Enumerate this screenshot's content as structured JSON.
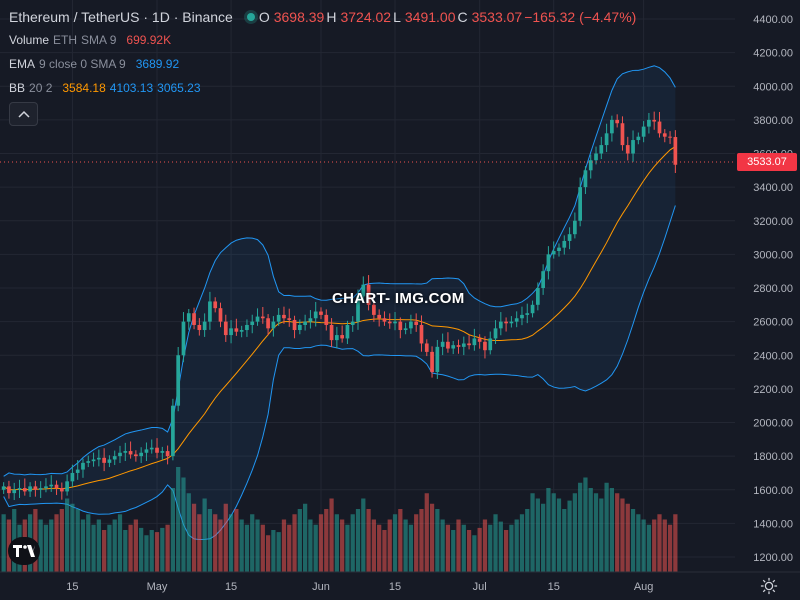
{
  "legend": {
    "symbol": "Ethereum / TetherUS · 1D · Binance",
    "ohlc": [
      {
        "label": "O",
        "value": "3698.39"
      },
      {
        "label": "H",
        "value": "3724.02"
      },
      {
        "label": "L",
        "value": "3491.00"
      },
      {
        "label": "C",
        "value": "3533.07"
      }
    ],
    "change": "−165.32 (−4.47%)",
    "volume": {
      "name": "Volume",
      "unit": "ETH",
      "ma": "SMA 9",
      "value": "699.92K"
    },
    "ema": {
      "name": "EMA",
      "params": "9 close 0 SMA 9",
      "value": "3689.92"
    },
    "bb": {
      "name": "BB",
      "params": "20 2",
      "basis": "3584.18",
      "upper": "4103.13",
      "lower": "3065.23"
    }
  },
  "last_price": "3533.07",
  "watermark": "CHART- IMG.COM",
  "colors": {
    "up": "#26a69a",
    "down": "#ef5350",
    "ema": "#ff9800",
    "bb": "#2196f3",
    "bg": "#161a25"
  },
  "chart_data": {
    "type": "candlestick",
    "y_ticks": [
      "4400.00",
      "4200.00",
      "4000.00",
      "3800.00",
      "3600.00",
      "3400.00",
      "3200.00",
      "3000.00",
      "2800.00",
      "2600.00",
      "2400.00",
      "2200.00",
      "2000.00",
      "1800.00",
      "1600.00",
      "1400.00",
      "1200.00"
    ],
    "x_ticks": [
      {
        "label": "15",
        "date": "2024-04-15"
      },
      {
        "label": "May",
        "date": "2024-05-01"
      },
      {
        "label": "15",
        "date": "2024-05-15"
      },
      {
        "label": "Jun",
        "date": "2024-06-01"
      },
      {
        "label": "15",
        "date": "2024-06-15"
      },
      {
        "label": "Jul",
        "date": "2024-07-01"
      },
      {
        "label": "15",
        "date": "2024-07-15"
      },
      {
        "label": "Aug",
        "date": "2024-08-01"
      }
    ],
    "ylim": [
      1100,
      4480
    ],
    "closes": [
      1620,
      1580,
      1600,
      1610,
      1590,
      1620,
      1600,
      1610,
      1620,
      1630,
      1610,
      1590,
      1650,
      1700,
      1720,
      1760,
      1770,
      1780,
      1790,
      1760,
      1780,
      1800,
      1820,
      1830,
      1810,
      1800,
      1820,
      1840,
      1850,
      1820,
      1830,
      1800,
      2100,
      2400,
      2600,
      2650,
      2580,
      2550,
      2600,
      2720,
      2680,
      2600,
      2520,
      2560,
      2540,
      2550,
      2580,
      2600,
      2630,
      2620,
      2560,
      2600,
      2640,
      2620,
      2610,
      2550,
      2580,
      2600,
      2620,
      2660,
      2640,
      2580,
      2490,
      2520,
      2500,
      2580,
      2600,
      2750,
      2820,
      2700,
      2640,
      2620,
      2600,
      2590,
      2600,
      2550,
      2560,
      2600,
      2580,
      2470,
      2420,
      2300,
      2450,
      2480,
      2440,
      2460,
      2450,
      2470,
      2460,
      2500,
      2480,
      2430,
      2500,
      2560,
      2600,
      2590,
      2600,
      2620,
      2640,
      2650,
      2700,
      2800,
      2900,
      3000,
      3020,
      3040,
      3080,
      3120,
      3200,
      3400,
      3500,
      3560,
      3600,
      3650,
      3720,
      3800,
      3780,
      3650,
      3600,
      3680,
      3700,
      3760,
      3800,
      3790,
      3720,
      3700,
      3698,
      3533
    ],
    "opens": [
      1600,
      1620,
      1580,
      1600,
      1610,
      1590,
      1620,
      1600,
      1610,
      1620,
      1630,
      1610,
      1590,
      1650,
      1700,
      1720,
      1760,
      1770,
      1780,
      1790,
      1760,
      1780,
      1800,
      1820,
      1830,
      1810,
      1800,
      1820,
      1840,
      1850,
      1820,
      1830,
      1800,
      2100,
      2400,
      2600,
      2650,
      2580,
      2550,
      2600,
      2720,
      2680,
      2600,
      2520,
      2560,
      2540,
      2550,
      2580,
      2600,
      2630,
      2620,
      2560,
      2600,
      2640,
      2620,
      2610,
      2550,
      2580,
      2600,
      2620,
      2660,
      2640,
      2580,
      2490,
      2520,
      2500,
      2580,
      2600,
      2750,
      2820,
      2700,
      2640,
      2620,
      2600,
      2590,
      2600,
      2550,
      2560,
      2600,
      2580,
      2470,
      2420,
      2300,
      2450,
      2480,
      2440,
      2460,
      2450,
      2470,
      2460,
      2500,
      2480,
      2430,
      2500,
      2560,
      2600,
      2590,
      2600,
      2620,
      2640,
      2650,
      2700,
      2800,
      2900,
      3000,
      3020,
      3040,
      3080,
      3120,
      3200,
      3400,
      3500,
      3560,
      3600,
      3650,
      3720,
      3800,
      3780,
      3650,
      3600,
      3680,
      3700,
      3760,
      3800,
      3790,
      3720,
      3700,
      3698
    ],
    "volumes": [
      0.55,
      0.5,
      0.6,
      0.45,
      0.5,
      0.55,
      0.6,
      0.5,
      0.45,
      0.5,
      0.55,
      0.6,
      0.7,
      0.65,
      0.6,
      0.5,
      0.55,
      0.45,
      0.5,
      0.4,
      0.45,
      0.5,
      0.55,
      0.4,
      0.45,
      0.5,
      0.42,
      0.35,
      0.4,
      0.38,
      0.42,
      0.45,
      0.8,
      1.0,
      0.9,
      0.75,
      0.65,
      0.55,
      0.7,
      0.6,
      0.55,
      0.5,
      0.65,
      0.55,
      0.6,
      0.5,
      0.45,
      0.55,
      0.5,
      0.45,
      0.35,
      0.4,
      0.38,
      0.5,
      0.45,
      0.55,
      0.6,
      0.65,
      0.5,
      0.45,
      0.55,
      0.6,
      0.7,
      0.55,
      0.5,
      0.45,
      0.55,
      0.6,
      0.7,
      0.6,
      0.5,
      0.45,
      0.4,
      0.5,
      0.55,
      0.6,
      0.5,
      0.45,
      0.55,
      0.6,
      0.75,
      0.65,
      0.6,
      0.5,
      0.45,
      0.4,
      0.5,
      0.45,
      0.4,
      0.35,
      0.42,
      0.5,
      0.45,
      0.55,
      0.48,
      0.4,
      0.45,
      0.5,
      0.55,
      0.6,
      0.75,
      0.7,
      0.65,
      0.8,
      0.75,
      0.7,
      0.6,
      0.68,
      0.75,
      0.85,
      0.9,
      0.8,
      0.75,
      0.7,
      0.85,
      0.8,
      0.75,
      0.7,
      0.65,
      0.6,
      0.55,
      0.5,
      0.45,
      0.5,
      0.55,
      0.5,
      0.45,
      0.55
    ],
    "series": [
      "Volume",
      "EMA 9",
      "BB 20 2"
    ]
  }
}
